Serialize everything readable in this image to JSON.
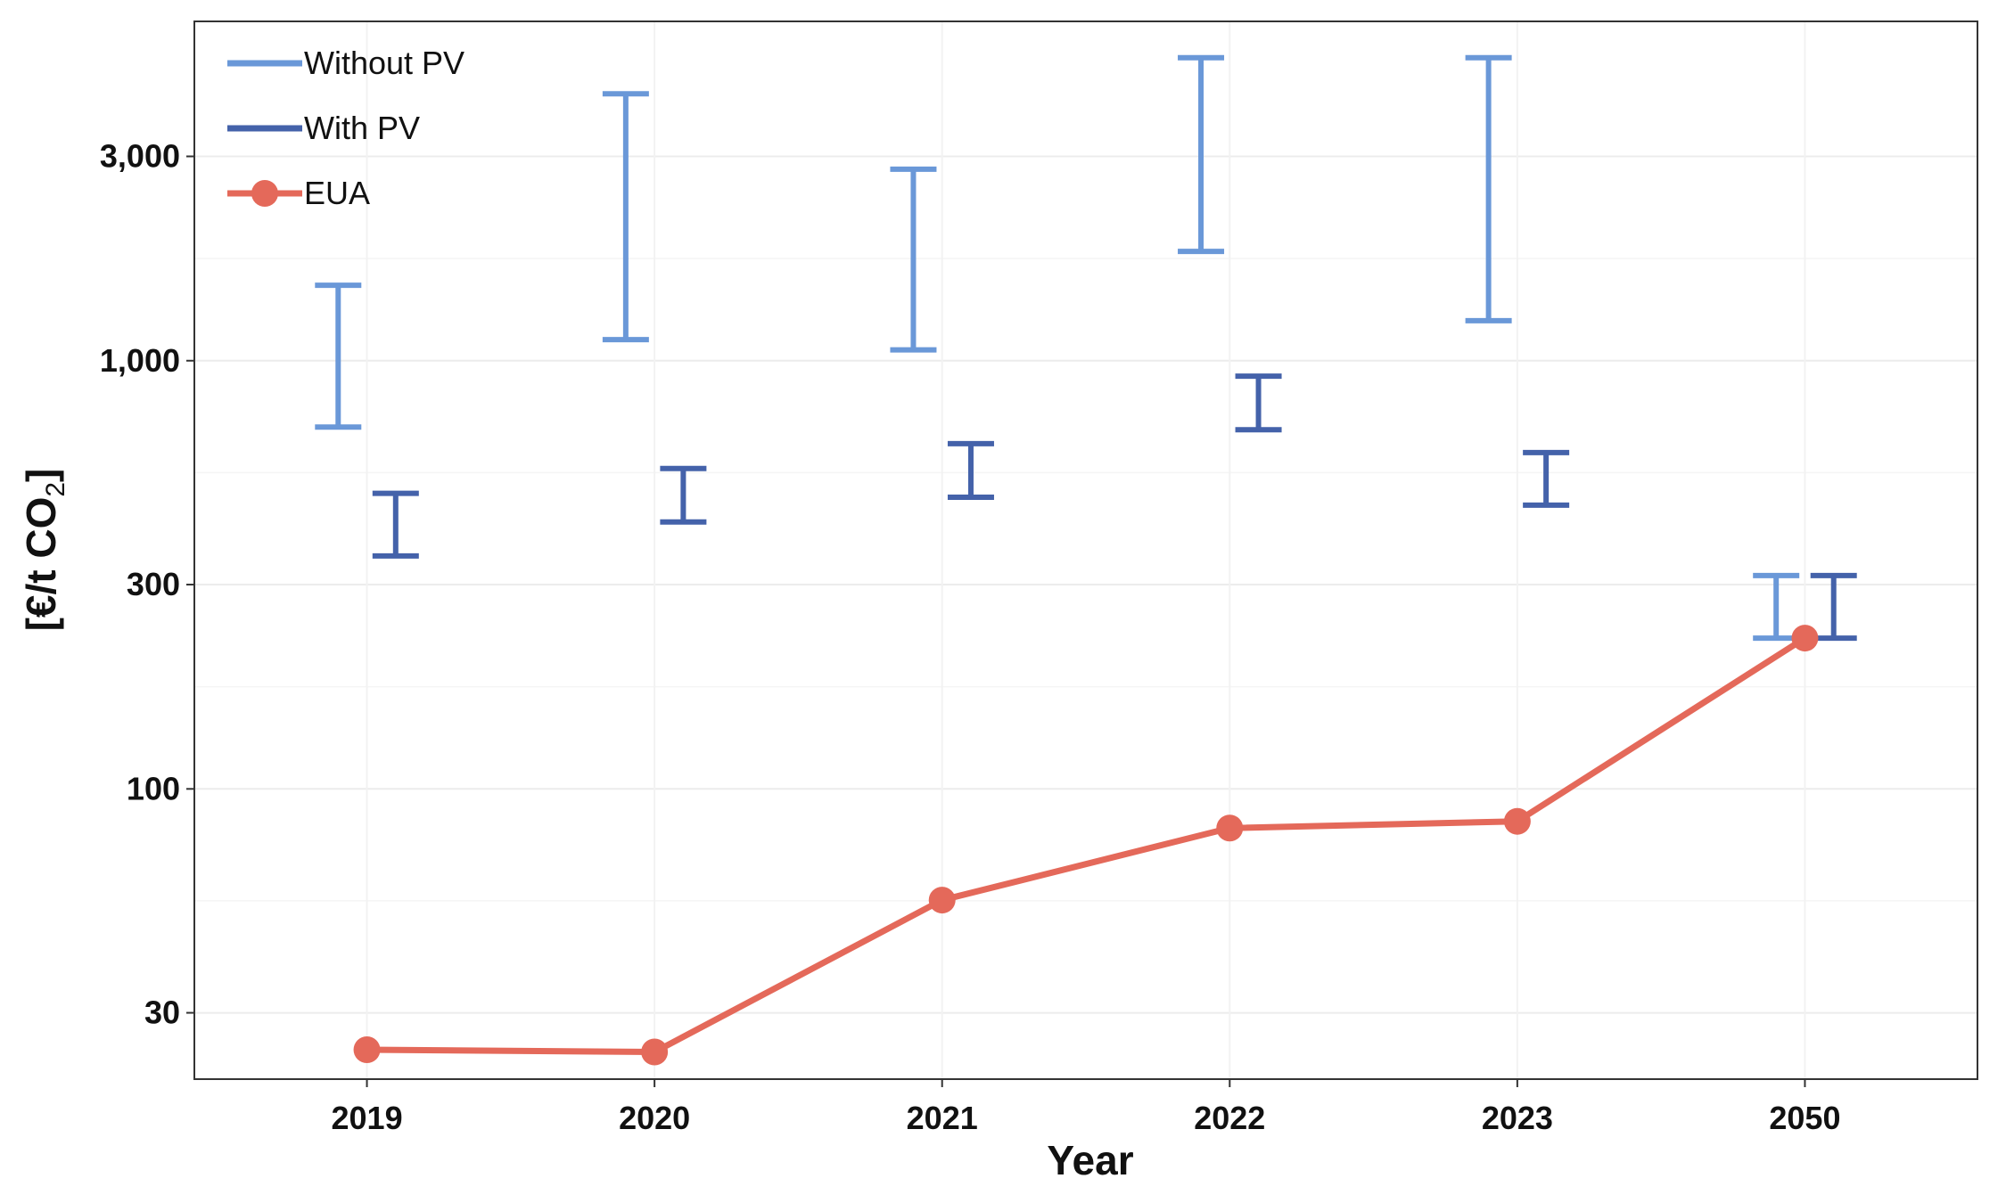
{
  "chart_data": {
    "type": "line",
    "categories": [
      "2019",
      "2020",
      "2021",
      "2022",
      "2023",
      "2050"
    ],
    "xlabel": "Year",
    "ylabel": {
      "main": "[€/t CO",
      "sub": "2",
      "close": "]"
    },
    "yscale": "log",
    "ylim": [
      21,
      6200
    ],
    "yticks": [
      30,
      100,
      300,
      1000,
      3000
    ],
    "ytick_labels": [
      "30",
      "100",
      "300",
      "1,000",
      "3,000"
    ],
    "grid": true,
    "legend_position": "top-left",
    "series": [
      {
        "name": "Without PV",
        "kind": "errorbar",
        "color": "#6A98D8",
        "low": [
          700,
          1120,
          1060,
          1800,
          1240,
          225
        ],
        "high": [
          1500,
          4200,
          2800,
          5100,
          5100,
          315
        ]
      },
      {
        "name": "With PV",
        "kind": "errorbar",
        "color": "#4462AA",
        "low": [
          350,
          420,
          480,
          690,
          460,
          225
        ],
        "high": [
          490,
          560,
          640,
          920,
          610,
          315
        ]
      },
      {
        "name": "EUA",
        "kind": "line",
        "color": "#E4695A",
        "values": [
          24.6,
          24.3,
          55,
          81,
          84,
          225
        ]
      }
    ]
  }
}
